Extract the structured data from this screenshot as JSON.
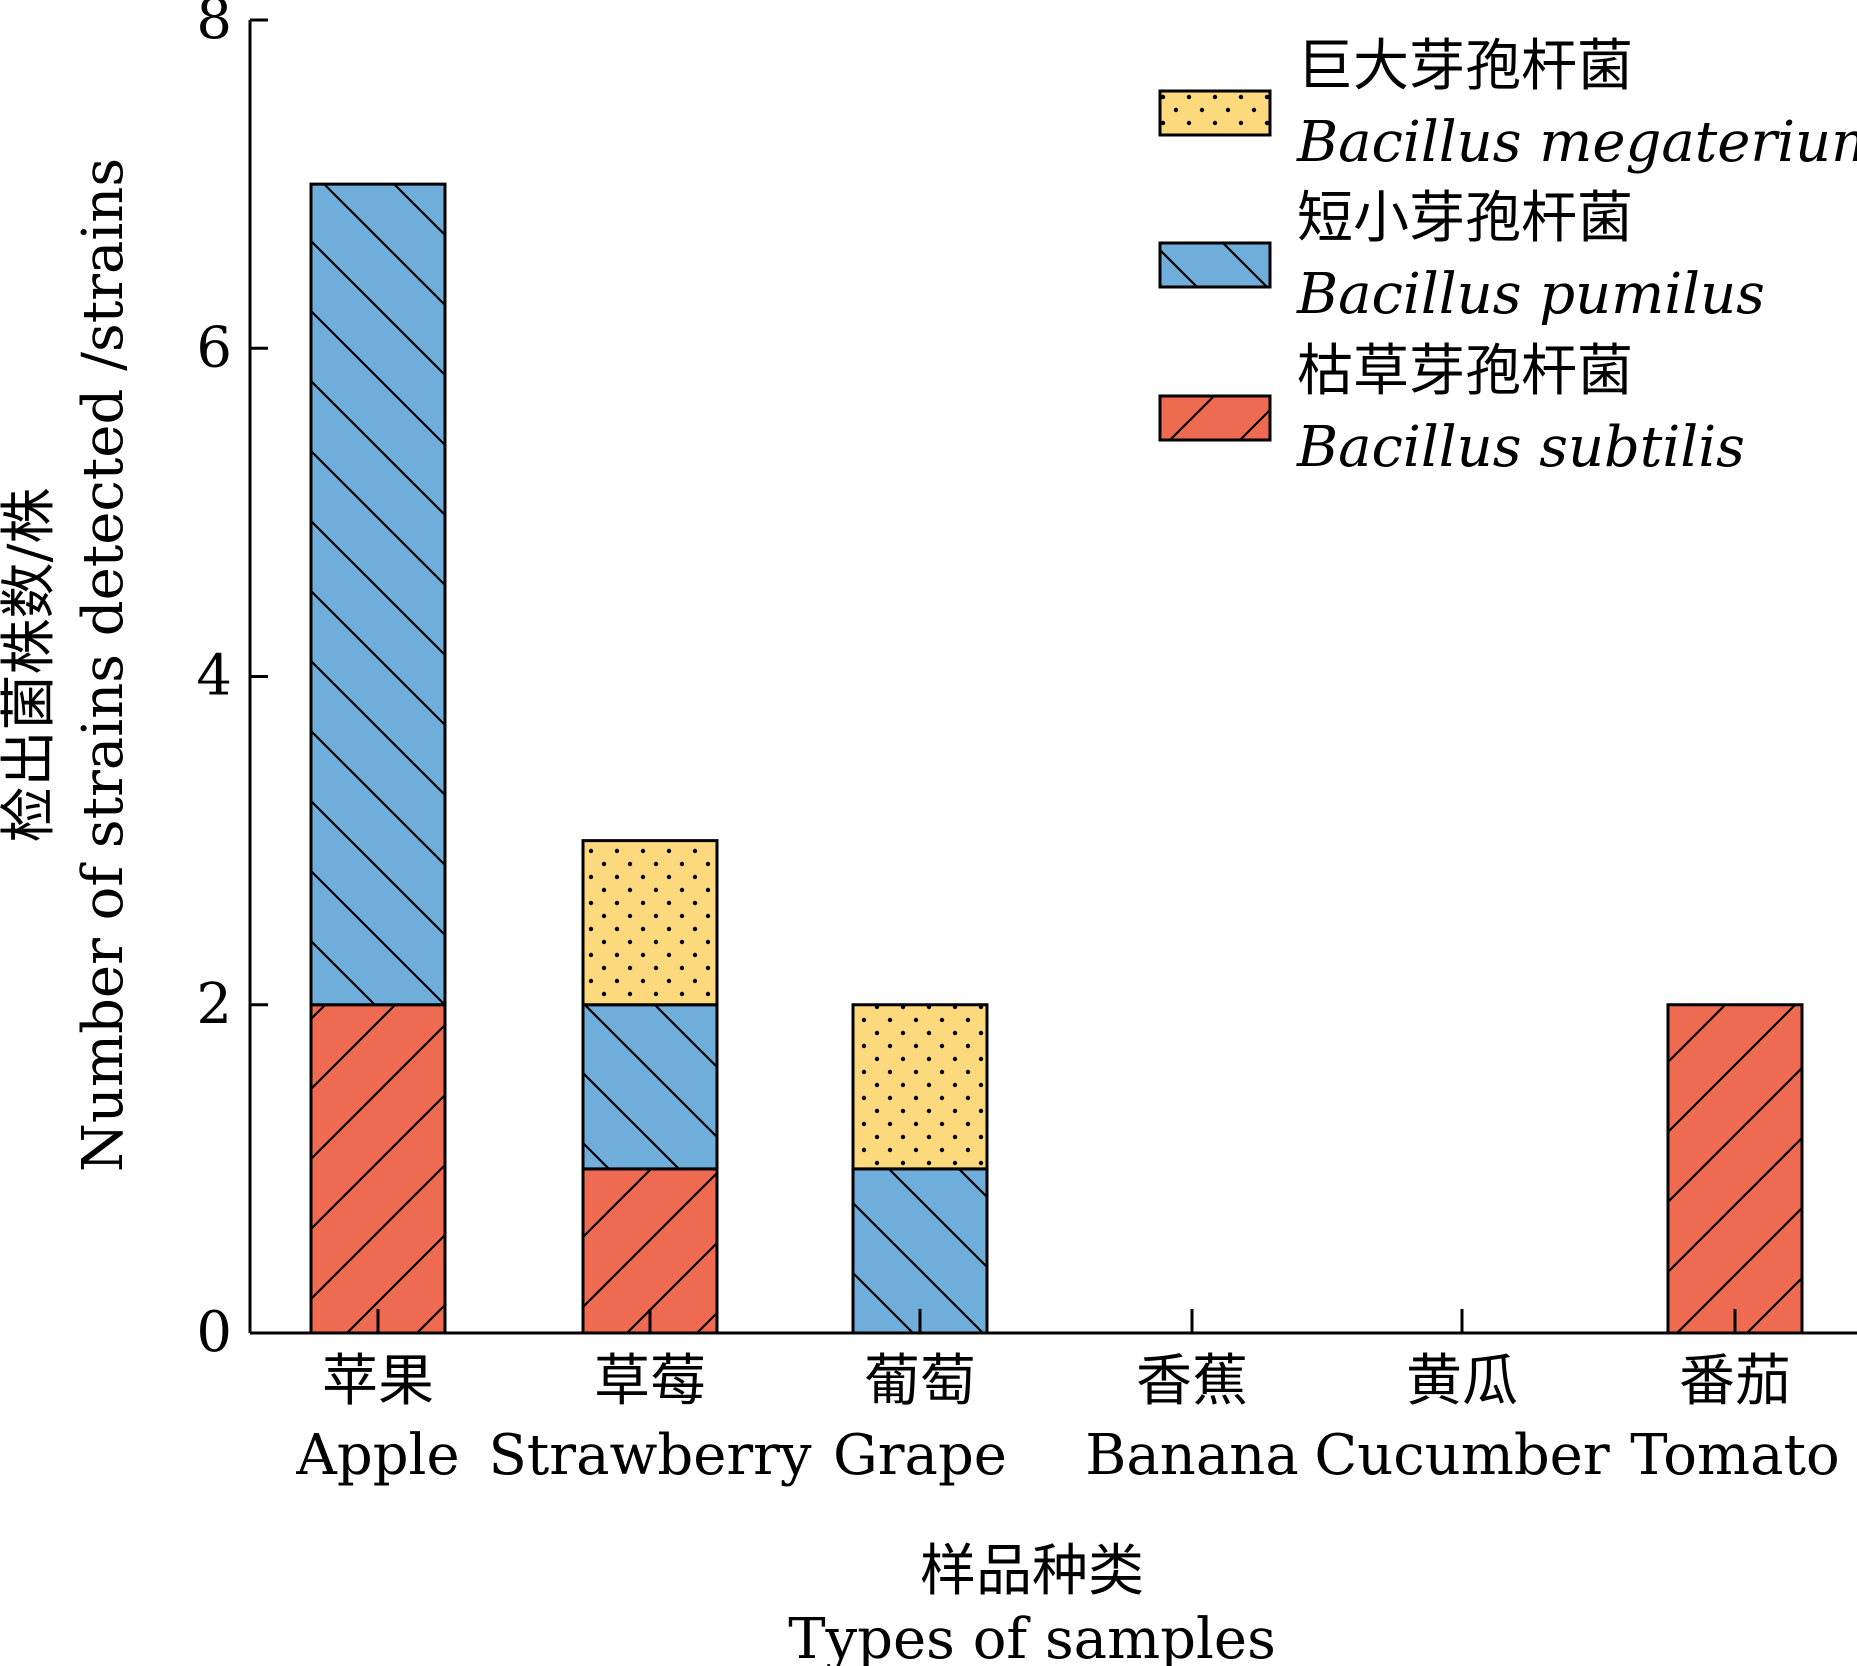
{
  "chart_data": {
    "type": "bar",
    "stacked": true,
    "categories": [
      {
        "zh": "苹果",
        "en": "Apple"
      },
      {
        "zh": "草莓",
        "en": "Strawberry"
      },
      {
        "zh": "葡萄",
        "en": "Grape"
      },
      {
        "zh": "香蕉",
        "en": "Banana"
      },
      {
        "zh": "黄瓜",
        "en": "Cucumber"
      },
      {
        "zh": "番茄",
        "en": "Tomato"
      }
    ],
    "series": [
      {
        "name_zh": "枯草芽孢杆菌",
        "name_en": "Bacillus subtilis",
        "color": "#ee6a50",
        "pattern": "diagonal-forward",
        "values": [
          2,
          1,
          0,
          0,
          0,
          2
        ]
      },
      {
        "name_zh": "短小芽孢杆菌",
        "name_en": "Bacillus pumilus",
        "color": "#6faedb",
        "pattern": "diagonal-back",
        "values": [
          5,
          1,
          1,
          0,
          0,
          0
        ]
      },
      {
        "name_zh": "巨大芽孢杆菌",
        "name_en": "Bacillus megaterium",
        "color": "#fdd97e",
        "pattern": "dots",
        "values": [
          0,
          1,
          1,
          0,
          0,
          0
        ]
      }
    ],
    "legend_order": [
      2,
      1,
      0
    ],
    "xlabel_zh": "样品种类",
    "xlabel_en": "Types of samples",
    "ylabel": "Number of strains detected /strains",
    "ylabel_zh": "检出菌株数/株",
    "ylim": [
      0,
      8
    ],
    "yticks": [
      0,
      2,
      4,
      6,
      8
    ],
    "grid": false,
    "legend_position": "top-right"
  }
}
